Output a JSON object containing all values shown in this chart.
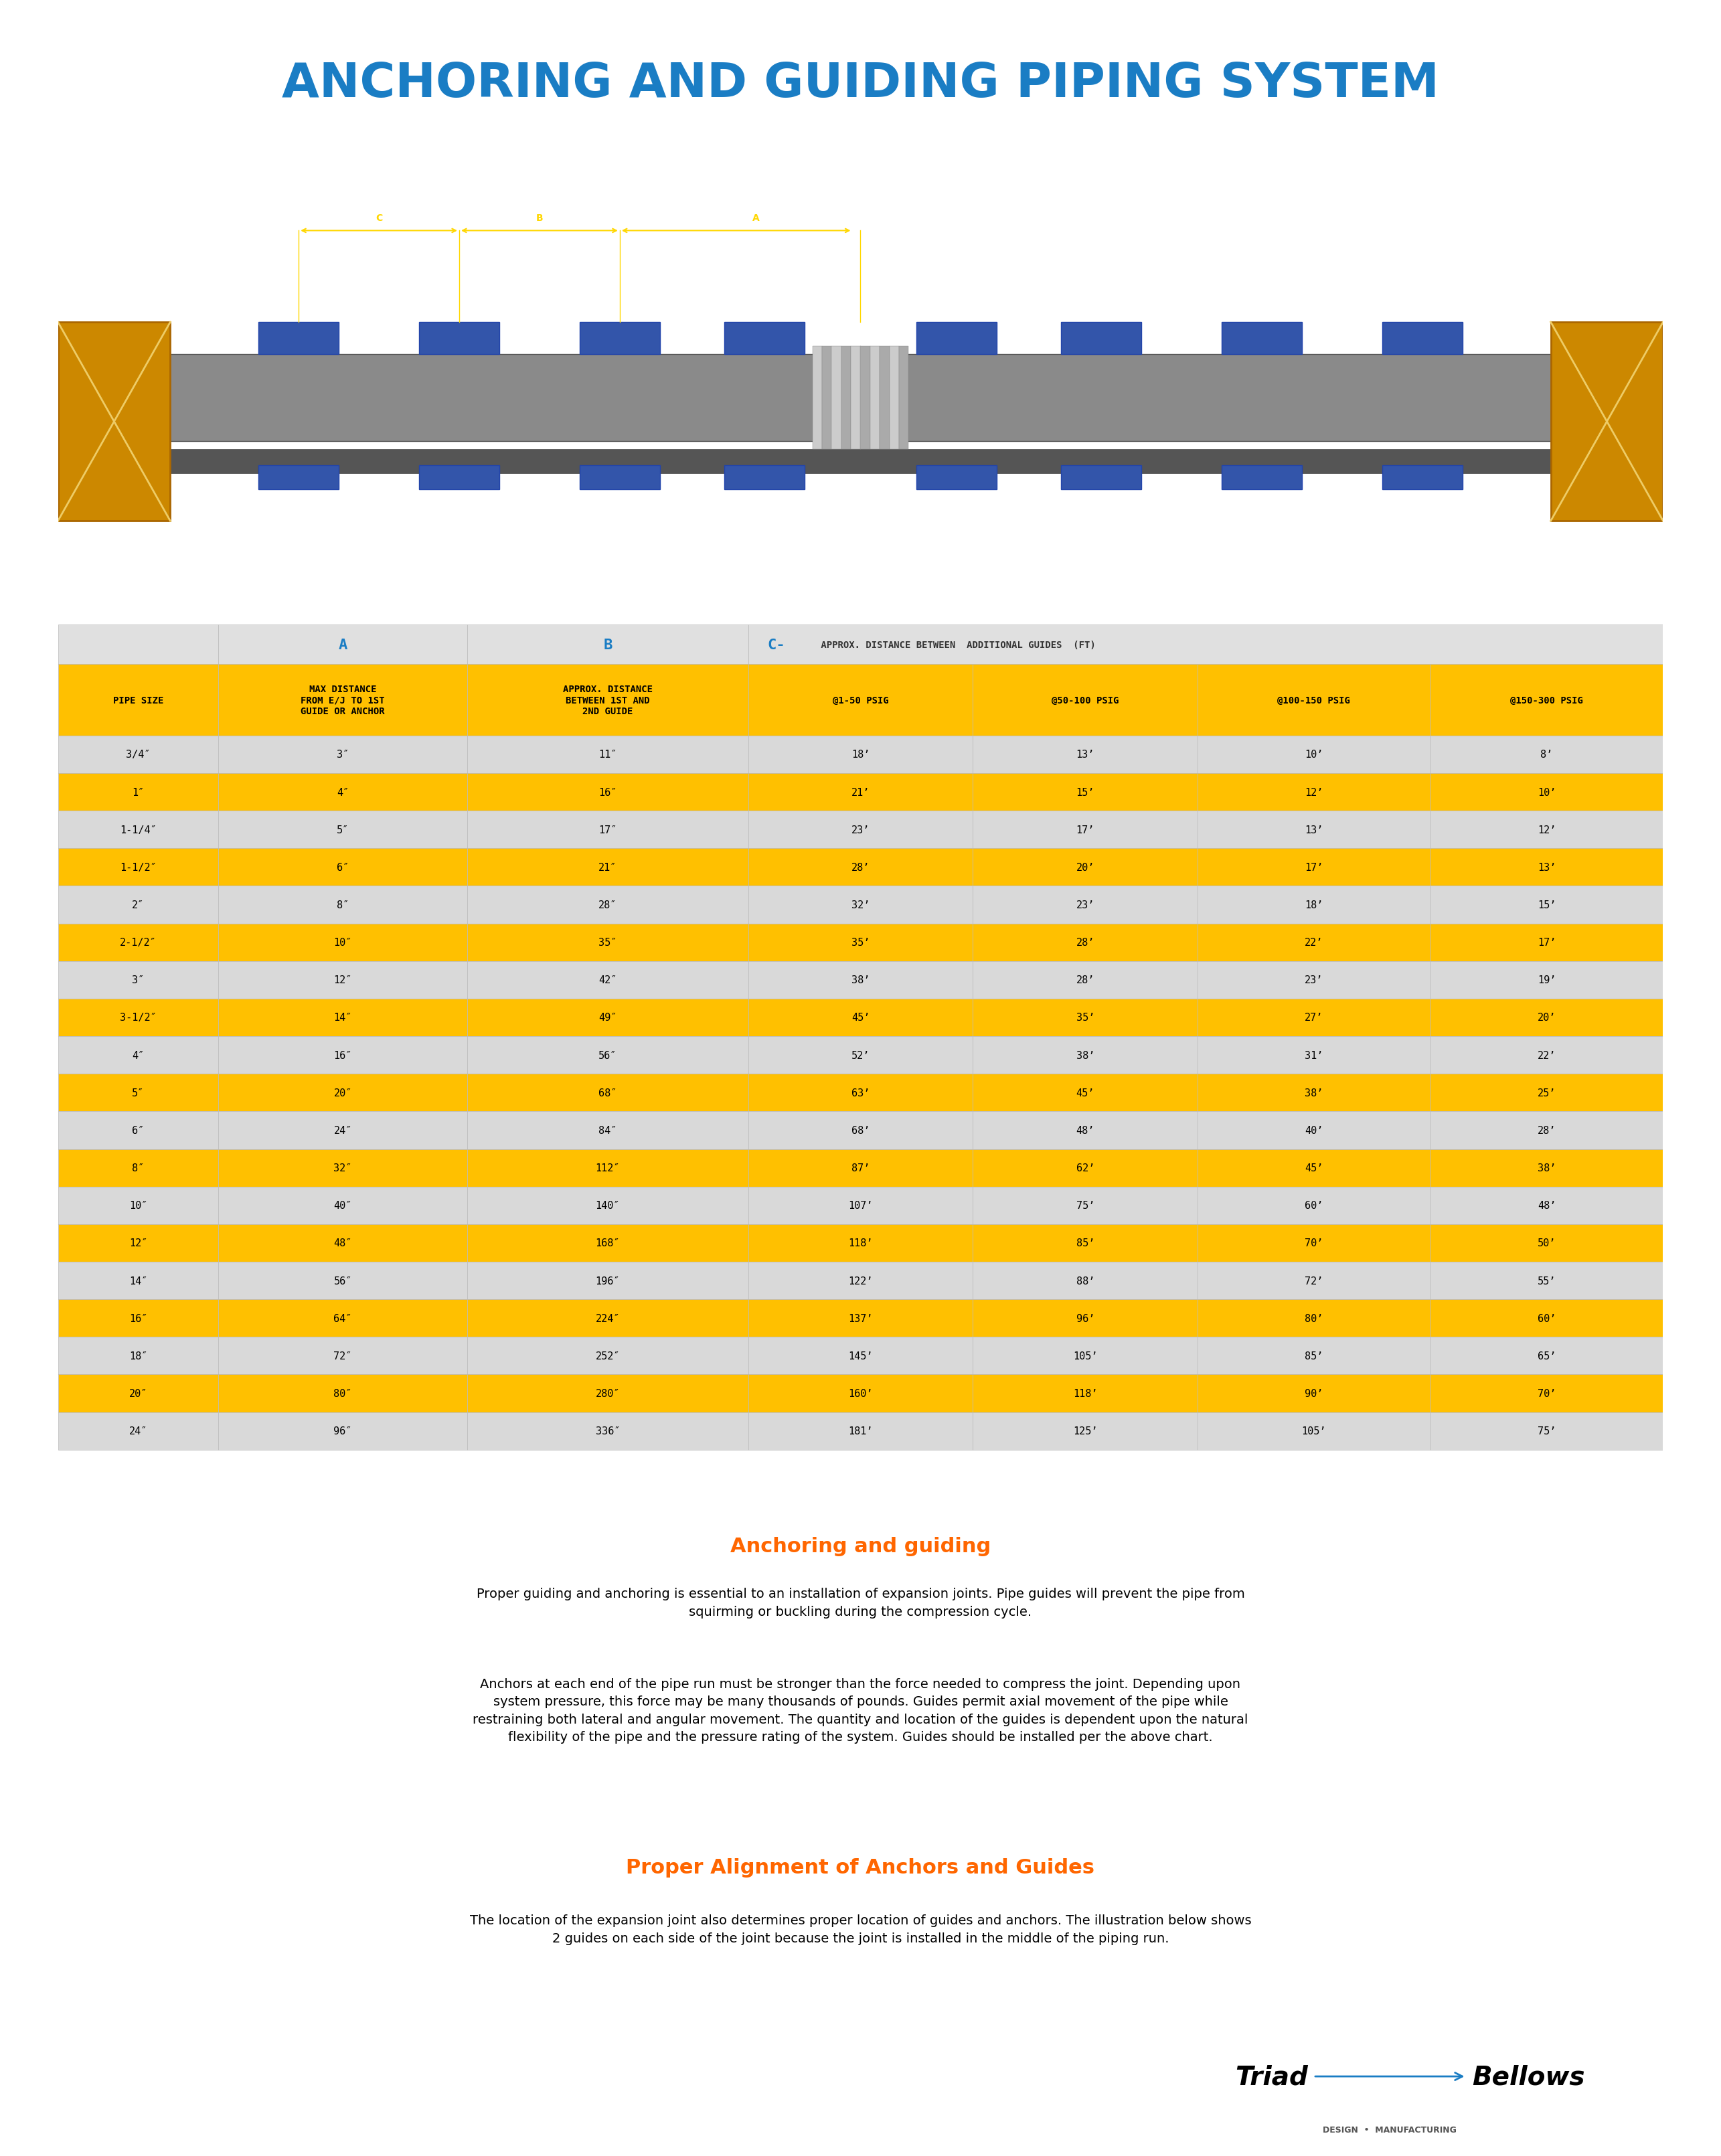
{
  "title": "ANCHORING AND GUIDING PIPING SYSTEM",
  "title_color": "#1a7dc4",
  "bg_color": "#ffffff",
  "table_header_row1": [
    "",
    "A",
    "B",
    "C- APPROX. DISTANCE BETWEEN  ADDITIONAL GUIDES  (FT)"
  ],
  "table_header_row2": [
    "PIPE SIZE",
    "MAX DISTANCE\nFROM E/J TO 1ST\nGUIDE OR ANCHOR",
    "APPROX. DISTANCE\nBETWEEN 1ST AND\n2ND GUIDE",
    "@1-50 PSIG",
    "@50-100 PSIG",
    "@100-150 PSIG",
    "@150-300 PSIG"
  ],
  "table_data": [
    [
      "3/4″",
      "3″",
      "11″",
      "18’",
      "13’",
      "10’",
      "8’"
    ],
    [
      "1″",
      "4″",
      "16″",
      "21’",
      "15’",
      "12’",
      "10’"
    ],
    [
      "1-1/4″",
      "5″",
      "17″",
      "23’",
      "17’",
      "13’",
      "12’"
    ],
    [
      "1-1/2″",
      "6″",
      "21″",
      "28’",
      "20’",
      "17’",
      "13’"
    ],
    [
      "2″",
      "8″",
      "28″",
      "32’",
      "23’",
      "18’",
      "15’"
    ],
    [
      "2-1/2″",
      "10″",
      "35″",
      "35’",
      "28’",
      "22’",
      "17’"
    ],
    [
      "3″",
      "12″",
      "42″",
      "38’",
      "28’",
      "23’",
      "19’"
    ],
    [
      "3-1/2″",
      "14″",
      "49″",
      "45’",
      "35’",
      "27’",
      "20’"
    ],
    [
      "4″",
      "16″",
      "56″",
      "52’",
      "38’",
      "31’",
      "22’"
    ],
    [
      "5″",
      "20″",
      "68″",
      "63’",
      "45’",
      "38’",
      "25’"
    ],
    [
      "6″",
      "24″",
      "84″",
      "68’",
      "48’",
      "40’",
      "28’"
    ],
    [
      "8″",
      "32″",
      "112″",
      "87’",
      "62’",
      "45’",
      "38’"
    ],
    [
      "10″",
      "40″",
      "140″",
      "107’",
      "75’",
      "60’",
      "48’"
    ],
    [
      "12″",
      "48″",
      "168″",
      "118’",
      "85’",
      "70’",
      "50’"
    ],
    [
      "14″",
      "56″",
      "196″",
      "122’",
      "88’",
      "72’",
      "55’"
    ],
    [
      "16″",
      "64″",
      "224″",
      "137’",
      "96’",
      "80’",
      "60’"
    ],
    [
      "18″",
      "72″",
      "252″",
      "145’",
      "105’",
      "85’",
      "65’"
    ],
    [
      "20″",
      "80″",
      "280″",
      "160’",
      "118’",
      "90’",
      "70’"
    ],
    [
      "24″",
      "96″",
      "336″",
      "181’",
      "125’",
      "105’",
      "75’"
    ]
  ],
  "yellow_color": "#FFC000",
  "gray_color": "#d9d9d9",
  "white_color": "#ffffff",
  "dark_bg": "#2d3748",
  "text_body1": "Proper guiding and anchoring is essential to an installation of expansion joints. Pipe guides will prevent the pipe from\nsquirming or buckling during the compression cycle.",
  "text_body2": "Anchors at each end of the pipe run must be stronger than the force needed to compress the joint. Depending upon\nsystem pressure, this force may be many thousands of pounds. Guides permit axial movement of the pipe while\nrestraining both lateral and angular movement. The quantity and location of the guides is dependent upon the natural\nflexibility of the pipe and the pressure rating of the system. Guides should be installed per the above chart.",
  "subtitle1": "Anchoring and guiding",
  "subtitle2": "Proper Alignment of Anchors and Guides",
  "text_body3": "The location of the expansion joint also determines proper location of guides and anchors. The illustration below shows\n2 guides on each side of the joint because the joint is installed in the middle of the piping run."
}
